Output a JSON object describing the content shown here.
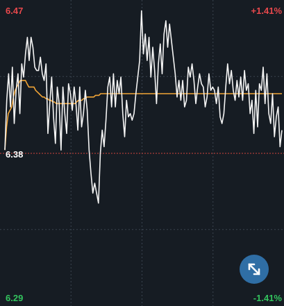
{
  "labels": {
    "price_high": "6.47",
    "pct_high": "+1.41%",
    "price_ref": "6.38",
    "price_low": "6.29",
    "pct_low": "-1.41%"
  },
  "colors": {
    "background": "#161c23",
    "up": "#e8484c",
    "down": "#33c45e",
    "price_line": "#f4f4f4",
    "avg_line": "#f2a536",
    "grid": "#3a4450",
    "ref_line": "#d2453e",
    "ref_text": "#ffffff",
    "button_bg": "#2f6ea5"
  },
  "expand_button": {
    "icon": "expand-arrows-icon"
  },
  "chart_data": {
    "type": "line",
    "ylim": [
      6.29,
      6.47
    ],
    "reference": 6.38,
    "grid": {
      "vertical": 4,
      "horizontal": 4
    },
    "series": [
      {
        "color": "#f4f4f4",
        "values": [
          6.382,
          6.412,
          6.428,
          6.408,
          6.432,
          6.398,
          6.418,
          6.428,
          6.404,
          6.434,
          6.426,
          6.44,
          6.45,
          6.436,
          6.45,
          6.444,
          6.432,
          6.43,
          6.43,
          6.438,
          6.428,
          6.424,
          6.434,
          6.392,
          6.41,
          6.426,
          6.402,
          6.386,
          6.42,
          6.41,
          6.382,
          6.42,
          6.404,
          6.392,
          6.422,
          6.416,
          6.406,
          6.42,
          6.41,
          6.394,
          6.42,
          6.396,
          6.404,
          6.418,
          6.406,
          6.382,
          6.368,
          6.356,
          6.362,
          6.356,
          6.35,
          6.38,
          6.394,
          6.384,
          6.4,
          6.42,
          6.426,
          6.408,
          6.428,
          6.408,
          6.424,
          6.416,
          6.426,
          6.404,
          6.39,
          6.412,
          6.402,
          6.404,
          6.4,
          6.404,
          6.416,
          6.426,
          6.436,
          6.466,
          6.44,
          6.452,
          6.436,
          6.45,
          6.426,
          6.444,
          6.43,
          6.41,
          6.434,
          6.446,
          6.428,
          6.452,
          6.46,
          6.444,
          6.458,
          6.448,
          6.438,
          6.428,
          6.414,
          6.424,
          6.412,
          6.424,
          6.408,
          6.412,
          6.432,
          6.426,
          6.434,
          6.424,
          6.41,
          6.42,
          6.428,
          6.422,
          6.42,
          6.408,
          6.414,
          6.428,
          6.418,
          6.42,
          6.418,
          6.41,
          6.42,
          6.402,
          6.398,
          6.404,
          6.42,
          6.434,
          6.422,
          6.43,
          6.418,
          6.412,
          6.424,
          6.414,
          6.426,
          6.412,
          6.43,
          6.418,
          6.422,
          6.404,
          6.412,
          6.392,
          6.418,
          6.396,
          6.422,
          6.418,
          6.432,
          6.41,
          6.428,
          6.404,
          6.398,
          6.416,
          6.39,
          6.402,
          6.408,
          6.384,
          6.394
        ]
      },
      {
        "color": "#f2a536",
        "values": [
          6.382,
          6.396,
          6.404,
          6.406,
          6.408,
          6.414,
          6.418,
          6.42,
          6.422,
          6.424,
          6.424,
          6.424,
          6.424,
          6.422,
          6.42,
          6.42,
          6.42,
          6.42,
          6.418,
          6.417,
          6.416,
          6.415,
          6.414,
          6.414,
          6.413,
          6.413,
          6.412,
          6.412,
          6.411,
          6.411,
          6.41,
          6.41,
          6.41,
          6.41,
          6.41,
          6.41,
          6.41,
          6.41,
          6.41,
          6.41,
          6.41,
          6.41,
          6.411,
          6.412,
          6.412,
          6.412,
          6.413,
          6.413,
          6.414,
          6.414,
          6.414,
          6.414,
          6.414,
          6.415,
          6.415,
          6.415,
          6.416,
          6.416,
          6.416,
          6.416,
          6.416,
          6.416,
          6.416,
          6.416,
          6.416,
          6.416,
          6.416,
          6.416,
          6.416,
          6.416,
          6.416,
          6.416,
          6.416,
          6.416,
          6.416,
          6.416,
          6.416,
          6.416,
          6.416,
          6.416,
          6.416,
          6.416,
          6.416,
          6.416,
          6.416,
          6.416,
          6.416,
          6.416,
          6.416,
          6.416,
          6.416,
          6.416,
          6.416,
          6.416,
          6.416,
          6.416,
          6.416,
          6.416,
          6.416,
          6.416,
          6.416,
          6.416,
          6.416,
          6.416,
          6.416,
          6.416,
          6.416,
          6.416,
          6.416,
          6.416,
          6.416,
          6.416,
          6.416,
          6.416,
          6.416,
          6.416,
          6.416,
          6.416,
          6.416,
          6.416,
          6.416,
          6.416,
          6.416,
          6.416,
          6.416,
          6.416,
          6.416,
          6.416,
          6.416,
          6.416,
          6.416,
          6.416,
          6.416,
          6.416,
          6.416,
          6.416,
          6.416,
          6.416,
          6.416,
          6.416,
          6.416,
          6.416,
          6.416,
          6.416,
          6.416,
          6.416,
          6.416,
          6.416,
          6.416,
          6.416,
          6.416,
          6.416,
          6.416,
          6.416,
          6.416,
          6.416,
          6.416,
          6.416,
          6.416,
          6.416,
          6.416,
          6.416,
          6.416
        ]
      }
    ]
  }
}
